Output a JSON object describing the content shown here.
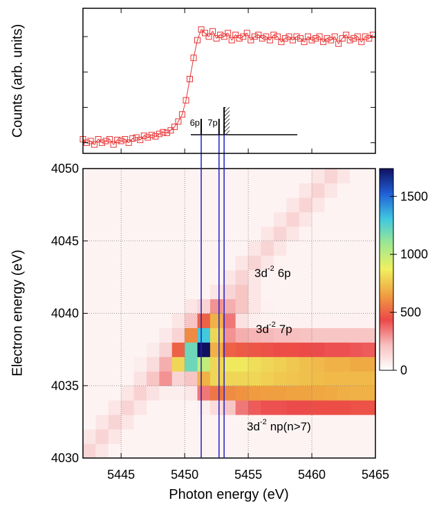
{
  "chart_data": [
    {
      "type": "scatter",
      "ylabel": "Counts (arb. units)",
      "xlim": [
        5442,
        5465
      ],
      "xticks": [
        5445,
        5450,
        5455,
        5460,
        5465
      ],
      "ylim": [
        -0.3,
        3.8
      ],
      "yticks": [
        0,
        1,
        2,
        3
      ],
      "x": [
        5442.0,
        5442.3,
        5442.6,
        5442.9,
        5443.2,
        5443.5,
        5443.8,
        5444.1,
        5444.4,
        5444.7,
        5445.0,
        5445.3,
        5445.6,
        5445.9,
        5446.2,
        5446.5,
        5446.8,
        5447.1,
        5447.4,
        5447.7,
        5448.0,
        5448.3,
        5448.6,
        5448.9,
        5449.2,
        5449.5,
        5449.8,
        5450.1,
        5450.4,
        5450.7,
        5451.0,
        5451.3,
        5451.6,
        5451.9,
        5452.2,
        5452.5,
        5452.8,
        5453.1,
        5453.4,
        5453.7,
        5454.0,
        5454.3,
        5454.6,
        5454.9,
        5455.2,
        5455.5,
        5455.8,
        5456.1,
        5456.4,
        5456.7,
        5457.0,
        5457.3,
        5457.6,
        5457.9,
        5458.2,
        5458.5,
        5458.8,
        5459.1,
        5459.4,
        5459.7,
        5460.0,
        5460.3,
        5460.6,
        5460.9,
        5461.2,
        5461.5,
        5461.8,
        5462.1,
        5462.4,
        5462.7,
        5463.0,
        5463.3,
        5463.6,
        5463.9,
        5464.2,
        5464.5,
        5464.8
      ],
      "series": [
        {
          "color": "#e83030",
          "values": [
            0.1,
            0.0,
            0.05,
            -0.05,
            0.1,
            0.0,
            0.05,
            0.1,
            -0.05,
            0.08,
            0.05,
            0.1,
            0.0,
            0.12,
            0.15,
            0.08,
            0.2,
            0.15,
            0.22,
            0.18,
            0.25,
            0.3,
            0.28,
            0.35,
            0.45,
            0.6,
            0.8,
            1.2,
            1.8,
            2.4,
            2.9,
            3.2,
            3.1,
            3.0,
            3.15,
            2.95,
            3.05,
            3.0,
            3.1,
            2.9,
            3.05,
            2.95,
            3.0,
            3.1,
            2.9,
            3.0,
            3.05,
            2.95,
            3.0,
            2.9,
            3.05,
            3.0,
            2.85,
            2.95,
            3.0,
            2.9,
            3.0,
            2.95,
            2.85,
            3.0,
            2.9,
            2.95,
            3.0,
            2.85,
            2.95,
            2.9,
            3.0,
            2.8,
            2.95,
            3.05,
            2.9,
            2.95,
            3.0,
            2.85,
            3.0,
            2.95,
            3.05
          ]
        }
      ],
      "resonances": [
        {
          "label": "6p",
          "x": 5451.3
        },
        {
          "label": "7p",
          "x": 5452.7
        },
        {
          "x": 5453.1
        }
      ],
      "resonance_color": "#1c1cc8"
    },
    {
      "type": "heatmap",
      "xlabel": "Photon energy (eV)",
      "ylabel": "Electron energy (eV)",
      "xlim": [
        5442,
        5465
      ],
      "xticks": [
        5445,
        5450,
        5455,
        5460,
        5465
      ],
      "ylim": [
        4030,
        4050
      ],
      "yticks": [
        4030,
        4035,
        4040,
        4045,
        4050
      ],
      "grid": true,
      "xbins": [
        5442,
        5443,
        5444,
        5445,
        5446,
        5447,
        5448,
        5449,
        5450,
        5451,
        5452,
        5453,
        5454,
        5455,
        5456,
        5457,
        5458,
        5459,
        5460,
        5461,
        5462,
        5463,
        5464,
        5465
      ],
      "ybins": [
        4030,
        4031,
        4032,
        4033,
        4034,
        4035,
        4036,
        4037,
        4038,
        4039,
        4040,
        4041,
        4042,
        4043,
        4044,
        4045,
        4046,
        4047,
        4048,
        4049,
        4050
      ],
      "z": [
        [
          150,
          90,
          40,
          40,
          40,
          40,
          40,
          40,
          40,
          40,
          40,
          40,
          40,
          40,
          40,
          40,
          40,
          40,
          40,
          40,
          40,
          40,
          40
        ],
        [
          90,
          150,
          90,
          40,
          40,
          40,
          40,
          40,
          40,
          40,
          40,
          40,
          40,
          40,
          40,
          40,
          40,
          40,
          40,
          40,
          40,
          40,
          40
        ],
        [
          40,
          90,
          150,
          90,
          40,
          40,
          40,
          40,
          40,
          40,
          40,
          40,
          40,
          40,
          40,
          40,
          40,
          40,
          40,
          40,
          40,
          40,
          40
        ],
        [
          40,
          40,
          90,
          150,
          90,
          40,
          40,
          40,
          40,
          60,
          120,
          200,
          350,
          400,
          420,
          420,
          430,
          430,
          450,
          450,
          450,
          460,
          460
        ],
        [
          40,
          40,
          40,
          90,
          160,
          100,
          60,
          60,
          80,
          350,
          550,
          600,
          620,
          640,
          650,
          650,
          660,
          660,
          670,
          680,
          690,
          700,
          700
        ],
        [
          40,
          40,
          40,
          40,
          100,
          200,
          300,
          150,
          200,
          700,
          800,
          800,
          800,
          800,
          780,
          760,
          750,
          740,
          730,
          720,
          720,
          720,
          720
        ],
        [
          40,
          40,
          40,
          40,
          60,
          120,
          250,
          800,
          1200,
          1000,
          800,
          850,
          850,
          820,
          800,
          780,
          760,
          740,
          720,
          700,
          700,
          680,
          680
        ],
        [
          40,
          40,
          40,
          40,
          40,
          70,
          150,
          500,
          1200,
          1740,
          700,
          500,
          480,
          470,
          460,
          450,
          450,
          440,
          430,
          420,
          420,
          410,
          400
        ],
        [
          40,
          40,
          40,
          40,
          40,
          40,
          80,
          150,
          600,
          1300,
          800,
          300,
          250,
          240,
          230,
          220,
          220,
          210,
          200,
          200,
          200,
          200,
          200
        ],
        [
          40,
          40,
          40,
          40,
          40,
          40,
          40,
          90,
          200,
          500,
          700,
          350,
          100,
          60,
          50,
          50,
          50,
          50,
          50,
          50,
          50,
          50,
          50
        ],
        [
          40,
          40,
          40,
          40,
          40,
          40,
          40,
          40,
          90,
          150,
          300,
          250,
          200,
          90,
          50,
          40,
          40,
          40,
          40,
          40,
          40,
          40,
          40
        ],
        [
          40,
          40,
          40,
          40,
          40,
          40,
          40,
          40,
          40,
          40,
          90,
          150,
          200,
          90,
          40,
          40,
          40,
          40,
          40,
          40,
          40,
          40,
          40
        ],
        [
          40,
          40,
          40,
          40,
          40,
          40,
          40,
          40,
          40,
          40,
          40,
          90,
          150,
          90,
          40,
          40,
          40,
          40,
          40,
          40,
          40,
          40,
          40
        ],
        [
          40,
          40,
          40,
          40,
          40,
          40,
          40,
          40,
          40,
          40,
          40,
          40,
          90,
          150,
          90,
          40,
          40,
          40,
          40,
          40,
          40,
          40,
          40
        ],
        [
          40,
          40,
          40,
          40,
          40,
          40,
          40,
          40,
          40,
          40,
          40,
          40,
          40,
          90,
          150,
          90,
          40,
          40,
          40,
          40,
          40,
          40,
          40
        ],
        [
          40,
          40,
          40,
          40,
          40,
          40,
          40,
          40,
          40,
          40,
          40,
          40,
          40,
          40,
          90,
          150,
          90,
          40,
          40,
          40,
          40,
          40,
          40
        ],
        [
          40,
          40,
          40,
          40,
          40,
          40,
          40,
          40,
          40,
          40,
          40,
          40,
          40,
          40,
          40,
          90,
          150,
          90,
          40,
          40,
          40,
          40,
          40
        ],
        [
          40,
          40,
          40,
          40,
          40,
          40,
          40,
          40,
          40,
          40,
          40,
          40,
          40,
          40,
          40,
          40,
          90,
          150,
          90,
          40,
          40,
          40,
          40
        ],
        [
          40,
          40,
          40,
          40,
          40,
          40,
          40,
          40,
          40,
          40,
          40,
          40,
          40,
          40,
          40,
          40,
          40,
          90,
          150,
          90,
          40,
          40,
          40
        ],
        [
          40,
          40,
          40,
          40,
          40,
          40,
          40,
          40,
          40,
          40,
          40,
          40,
          40,
          40,
          40,
          40,
          40,
          40,
          90,
          150,
          90,
          40,
          40
        ]
      ],
      "zlim": [
        0,
        1740
      ],
      "zticks": [
        0,
        500,
        1000,
        1500
      ],
      "colormap": [
        "#ffffff",
        "#f7c0c0",
        "#ec4848",
        "#f0a040",
        "#f0f060",
        "#a0e890",
        "#40c8e0",
        "#2060d8",
        "#101060"
      ],
      "annotations": [
        {
          "base": "3d",
          "sup": "-2",
          "rest": "6p"
        },
        {
          "base": "3d",
          "sup": "-2",
          "rest": "7p"
        },
        {
          "base": "3d",
          "sup": "-2",
          "rest": "np(n>7)"
        }
      ]
    }
  ]
}
